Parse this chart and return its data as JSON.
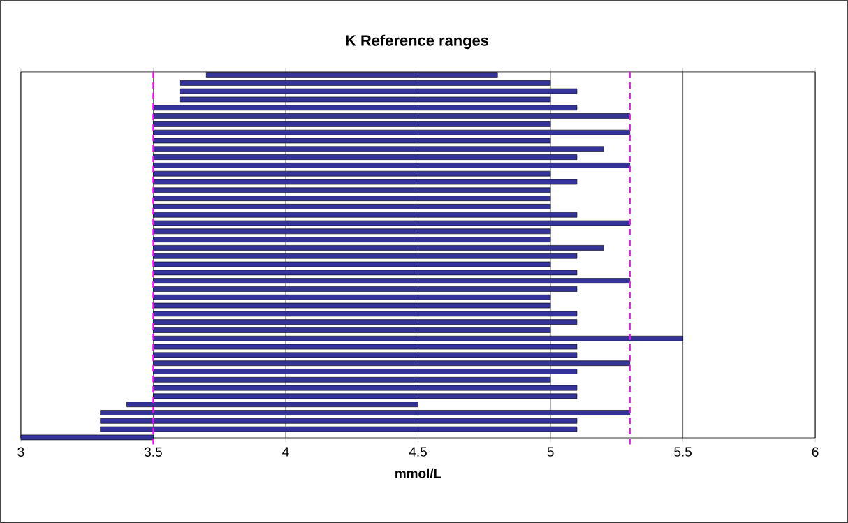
{
  "chart_data": {
    "type": "bar",
    "orientation": "horizontal",
    "title": "K Reference ranges",
    "xlabel": "mmol/L",
    "categories": [
      null,
      null,
      null,
      null,
      null,
      null,
      null,
      null,
      null,
      null,
      null,
      null,
      null,
      null,
      null,
      null,
      null,
      null,
      null,
      null,
      null,
      null,
      null,
      null,
      null,
      null,
      null,
      null,
      null,
      null,
      null,
      null,
      null,
      null,
      null,
      null,
      null,
      null,
      null,
      null,
      null,
      null,
      null,
      null,
      null
    ],
    "base": [
      3.7,
      3.6,
      3.6,
      3.6,
      3.5,
      3.5,
      3.5,
      3.5,
      3.5,
      3.5,
      3.5,
      3.5,
      3.5,
      3.5,
      3.5,
      3.5,
      3.5,
      3.5,
      3.5,
      3.5,
      3.5,
      3.5,
      3.5,
      3.5,
      3.5,
      3.5,
      3.5,
      3.5,
      3.5,
      3.5,
      3.5,
      3.5,
      3.5,
      3.5,
      3.5,
      3.5,
      3.5,
      3.5,
      3.5,
      3.5,
      3.4,
      3.3,
      3.3,
      3.3,
      3.0
    ],
    "values": [
      1.1,
      1.4,
      1.5,
      1.4,
      1.6,
      1.8,
      1.5,
      1.8,
      1.5,
      1.7,
      1.6,
      1.8,
      1.5,
      1.6,
      1.5,
      1.5,
      1.5,
      1.6,
      1.8,
      1.5,
      1.5,
      1.7,
      1.6,
      1.5,
      1.6,
      1.8,
      1.6,
      1.5,
      1.5,
      1.6,
      1.6,
      1.5,
      2.0,
      1.6,
      1.6,
      1.8,
      1.6,
      1.5,
      1.6,
      1.6,
      1.1,
      2.0,
      1.8,
      1.8,
      0.5
    ],
    "color": "#333399",
    "xlim": [
      3,
      6
    ],
    "xticks": [
      3,
      3.5,
      4,
      4.5,
      5,
      5.5,
      6
    ],
    "tick_labels": "x",
    "grid": "x",
    "ref_lines": [
      {
        "axis": "x",
        "value": 3.5,
        "color": "#ff00ff",
        "line_style": "dashed"
      },
      {
        "axis": "x",
        "value": 5.3,
        "color": "#ff00ff",
        "line_style": "dashed"
      }
    ]
  }
}
